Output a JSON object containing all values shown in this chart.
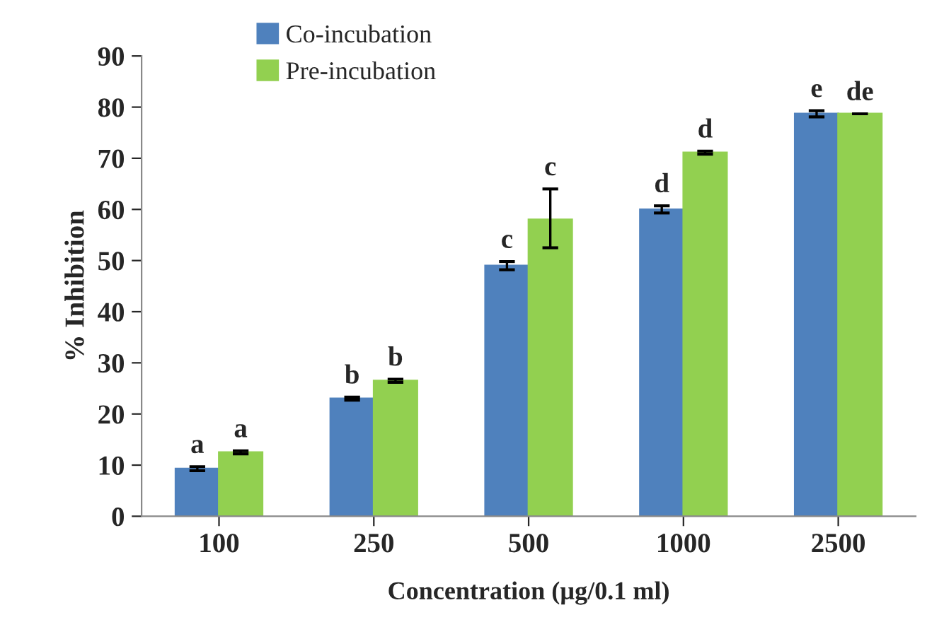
{
  "chart_data": {
    "type": "bar",
    "xlabel": "Concentration (µg/0.1 ml)",
    "ylabel": "% Inhibition",
    "categories": [
      "100",
      "250",
      "500",
      "1000",
      "2500"
    ],
    "series": [
      {
        "name": "Co-incubation",
        "color": "#4f81bd",
        "values": [
          9.3,
          23.0,
          49.0,
          60.0,
          78.7
        ],
        "errors": [
          0.4,
          0.3,
          0.8,
          0.7,
          0.6
        ]
      },
      {
        "name": "Pre-incubation",
        "color": "#92d050",
        "values": [
          12.5,
          26.5,
          58.0,
          71.1,
          78.7
        ],
        "errors": [
          0.3,
          0.3,
          [
            52.5,
            64.0
          ],
          0.3,
          null
        ]
      }
    ],
    "ylim": [
      0,
      90
    ],
    "yticks": [
      0,
      10,
      20,
      30,
      40,
      50,
      60,
      70,
      80,
      90
    ],
    "grid": false,
    "legend": "top left",
    "annotations": [
      {
        "text": "a",
        "x": "100",
        "y": 9.3
      },
      {
        "text": "a",
        "x": "100",
        "y": 12.5
      },
      {
        "text": "b",
        "x": "250",
        "y": 23.0
      },
      {
        "text": "b",
        "x": "250",
        "y": 26.5
      },
      {
        "text": "c",
        "x": "500",
        "y": 49.0
      },
      {
        "text": "c",
        "x": "500",
        "y": 58.0
      },
      {
        "text": "d",
        "x": "1000",
        "y": 60.0
      },
      {
        "text": "d",
        "x": "1000",
        "y": 71.1
      },
      {
        "text": "e",
        "x": "2500",
        "y": 78.7
      },
      {
        "text": "de",
        "x": "2500",
        "y": 78.7
      }
    ]
  }
}
